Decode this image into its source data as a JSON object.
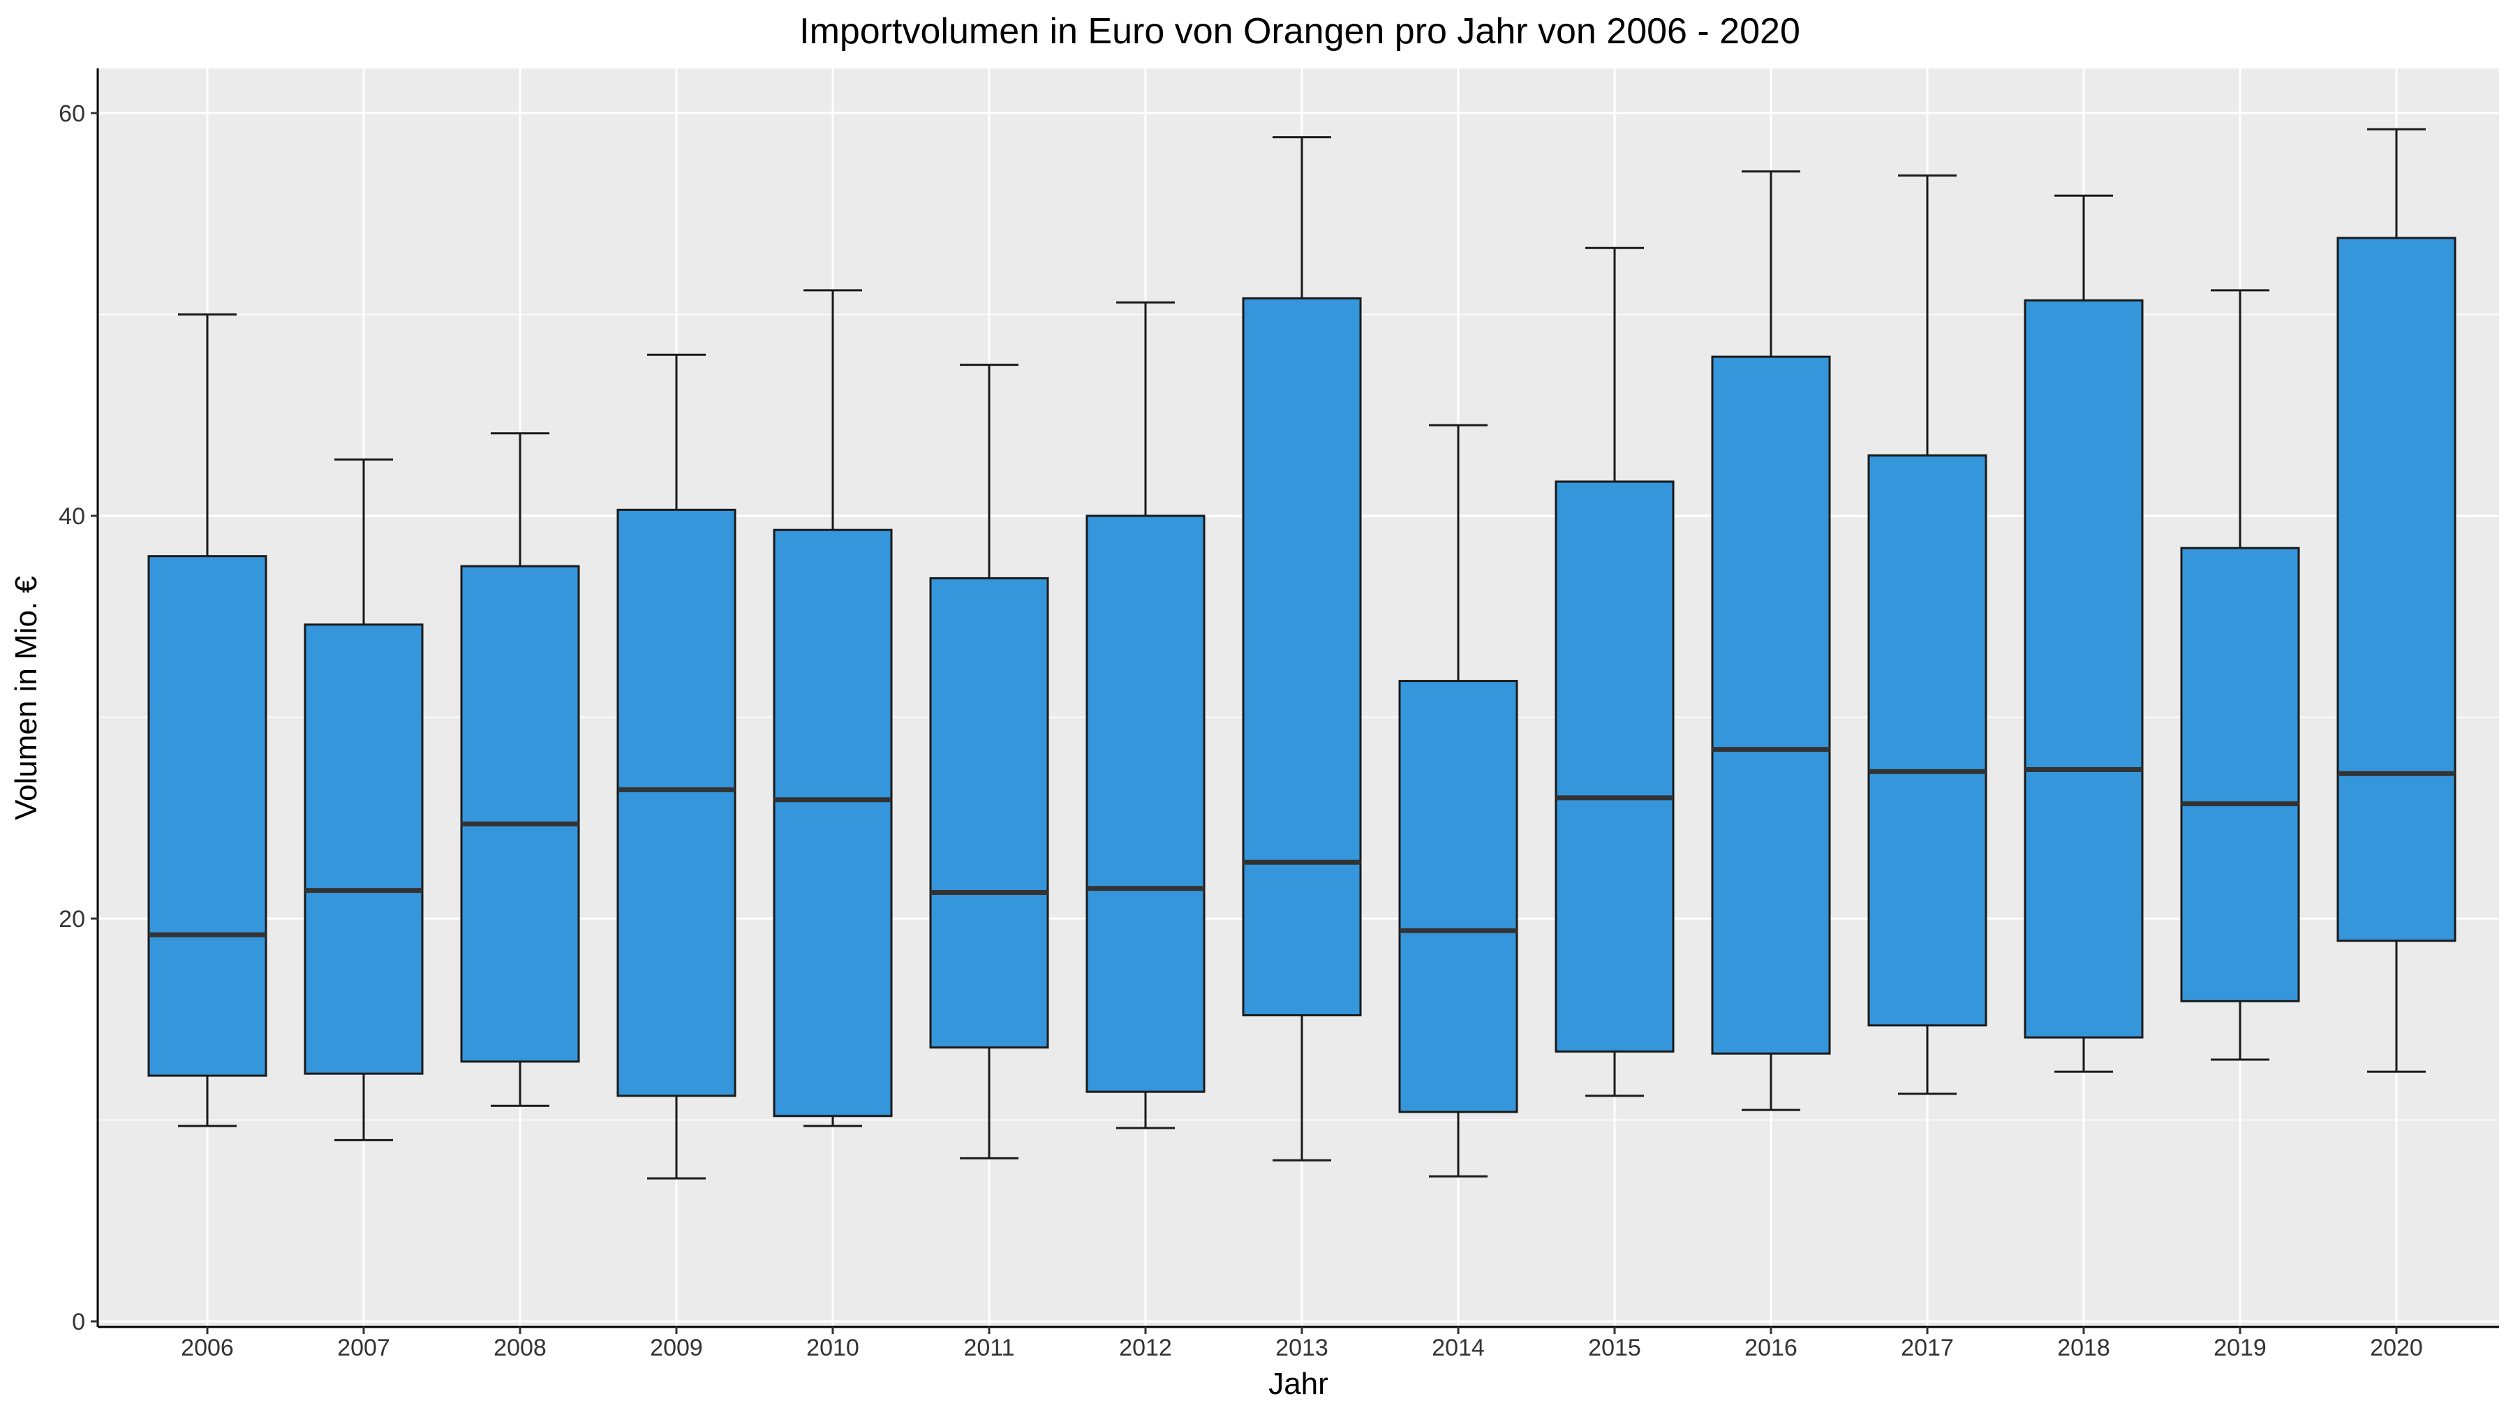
{
  "chart_data": {
    "type": "boxplot",
    "title": "Importvolumen in Euro von Orangen pro Jahr von 2006 - 2020",
    "xlabel": "Jahr",
    "ylabel": "Volumen in Mio. €",
    "ylim": [
      0,
      62
    ],
    "yticks": [
      0,
      20,
      40,
      60
    ],
    "yticks_labels": [
      "0",
      "20",
      "40",
      "60"
    ],
    "grid": true,
    "legend": "none",
    "categories": [
      "2006",
      "2007",
      "2008",
      "2009",
      "2010",
      "2011",
      "2012",
      "2013",
      "2014",
      "2015",
      "2016",
      "2017",
      "2018",
      "2019",
      "2020"
    ],
    "boxes": [
      {
        "category": "2006",
        "whisker_low": 9.7,
        "q1": 12.2,
        "median": 19.2,
        "q3": 38.0,
        "whisker_high": 50.0
      },
      {
        "category": "2007",
        "whisker_low": 9.0,
        "q1": 12.3,
        "median": 21.4,
        "q3": 34.6,
        "whisker_high": 42.8
      },
      {
        "category": "2008",
        "whisker_low": 10.7,
        "q1": 12.9,
        "median": 24.7,
        "q3": 37.5,
        "whisker_high": 44.1
      },
      {
        "category": "2009",
        "whisker_low": 7.1,
        "q1": 11.2,
        "median": 26.4,
        "q3": 40.3,
        "whisker_high": 48.0
      },
      {
        "category": "2010",
        "whisker_low": 9.7,
        "q1": 10.2,
        "median": 25.9,
        "q3": 39.3,
        "whisker_high": 51.2
      },
      {
        "category": "2011",
        "whisker_low": 8.1,
        "q1": 13.6,
        "median": 21.3,
        "q3": 36.9,
        "whisker_high": 47.5
      },
      {
        "category": "2012",
        "whisker_low": 9.6,
        "q1": 11.4,
        "median": 21.5,
        "q3": 40.0,
        "whisker_high": 50.6
      },
      {
        "category": "2013",
        "whisker_low": 8.0,
        "q1": 15.2,
        "median": 22.8,
        "q3": 50.8,
        "whisker_high": 58.8
      },
      {
        "category": "2014",
        "whisker_low": 7.2,
        "q1": 10.4,
        "median": 19.4,
        "q3": 31.8,
        "whisker_high": 44.5
      },
      {
        "category": "2015",
        "whisker_low": 11.2,
        "q1": 13.4,
        "median": 26.0,
        "q3": 41.7,
        "whisker_high": 53.3
      },
      {
        "category": "2016",
        "whisker_low": 10.5,
        "q1": 13.3,
        "median": 28.4,
        "q3": 47.9,
        "whisker_high": 57.1
      },
      {
        "category": "2017",
        "whisker_low": 11.3,
        "q1": 14.7,
        "median": 27.3,
        "q3": 43.0,
        "whisker_high": 56.9
      },
      {
        "category": "2018",
        "whisker_low": 12.4,
        "q1": 14.1,
        "median": 27.4,
        "q3": 50.7,
        "whisker_high": 55.9
      },
      {
        "category": "2019",
        "whisker_low": 13.0,
        "q1": 15.9,
        "median": 25.7,
        "q3": 38.4,
        "whisker_high": 51.2
      },
      {
        "category": "2020",
        "whisker_low": 12.4,
        "q1": 18.9,
        "median": 27.2,
        "q3": 53.8,
        "whisker_high": 59.2
      }
    ],
    "colors": {
      "box_fill": "#3596DB",
      "box_outline": "#1a1a1a",
      "median_line": "#333333",
      "panel_background": "#EBEBEB",
      "grid": "#FFFFFF",
      "axis_line": "#000000"
    }
  }
}
